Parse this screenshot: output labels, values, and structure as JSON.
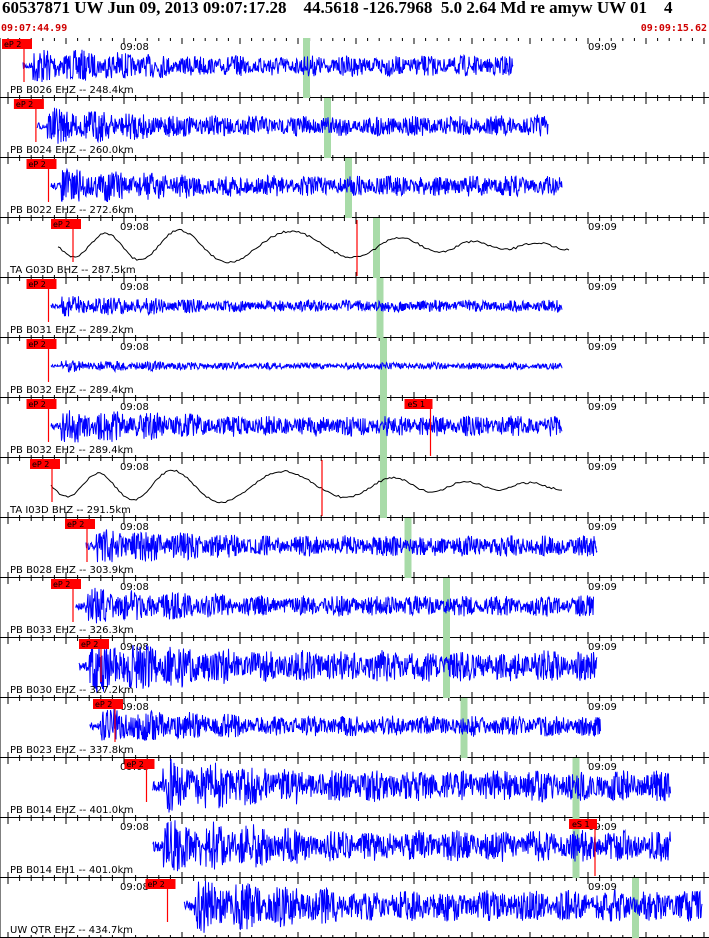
{
  "event": {
    "header_text": "60537871 UW Jun 09, 2013 09:07:17.28    44.5618 -126.7968  5.0 2.64 Md re amyw UW 01    4",
    "start_time": "09:07:44.99",
    "end_time": "09:09:15.62"
  },
  "colors": {
    "waveform": "#0000ff",
    "broadband": "#000000",
    "pick": "#ff0000",
    "highlight": "#a8dba8",
    "grid": "#000000"
  },
  "traces": [
    {
      "label": "PB B026 EHZ -- 248.4km",
      "kind": "short-period",
      "amp": "medium",
      "tick_left": "09:08",
      "tick_right": "09:09",
      "pick": {
        "label": "eP 2",
        "at": 0.0
      },
      "s_pick": null,
      "onset": 0.03,
      "duration": 0.7,
      "win": [
        0.43,
        0.44
      ]
    },
    {
      "label": "PB B024 EHZ -- 260.0km",
      "kind": "short-period",
      "amp": "medium",
      "tick_left": "",
      "tick_right": "",
      "pick": {
        "label": "eP 2",
        "at": 0.017
      },
      "s_pick": null,
      "onset": 0.05,
      "duration": 0.73,
      "win": [
        0.46,
        0.47
      ]
    },
    {
      "label": "PB B022 EHZ -- 272.6km",
      "kind": "short-period",
      "amp": "medium",
      "tick_left": "",
      "tick_right": "",
      "pick": {
        "label": "eP 2",
        "at": 0.035
      },
      "s_pick": null,
      "onset": 0.07,
      "duration": 0.73,
      "win": [
        0.49,
        0.5
      ]
    },
    {
      "label": "TA G03D BHZ -- 287.5km",
      "kind": "broadband",
      "amp": "large",
      "tick_left": "09:08",
      "tick_right": "09:09",
      "pick": {
        "label": "eP 2",
        "at": 0.07
      },
      "s_pick": {
        "label": "",
        "at": 0.47
      },
      "onset": 0.08,
      "duration": 0.73,
      "win": [
        0.53,
        0.54
      ]
    },
    {
      "label": "PB B031 EHZ -- 289.2km",
      "kind": "short-period",
      "amp": "small",
      "tick_left": "09:08",
      "tick_right": "09:09",
      "pick": {
        "label": "eP 2",
        "at": 0.035
      },
      "s_pick": null,
      "onset": 0.07,
      "duration": 0.73,
      "win": [
        0.535,
        0.545
      ]
    },
    {
      "label": "PB B032 EHZ -- 289.4km",
      "kind": "short-period",
      "amp": "tiny",
      "tick_left": "09:08",
      "tick_right": "09:09",
      "pick": {
        "label": "eP 2",
        "at": 0.035
      },
      "s_pick": null,
      "onset": 0.07,
      "duration": 0.73,
      "win": [
        0.54,
        0.55
      ]
    },
    {
      "label": "PB B032 EH2 -- 289.4km",
      "kind": "short-period",
      "amp": "medium",
      "tick_left": "09:08",
      "tick_right": "09:09",
      "pick": {
        "label": "eP 2",
        "at": 0.035
      },
      "s_pick": {
        "label": "eS 1",
        "at": 0.575
      },
      "onset": 0.07,
      "duration": 0.73,
      "win": [
        0.54,
        0.55
      ]
    },
    {
      "label": "TA I03D BHZ -- 291.5km",
      "kind": "broadband",
      "amp": "large",
      "tick_left": "09:08",
      "tick_right": "09:09",
      "pick": {
        "label": "eP 2",
        "at": 0.04
      },
      "s_pick": {
        "label": "",
        "at": 0.42
      },
      "onset": 0.07,
      "duration": 0.73,
      "win": [
        0.54,
        0.55
      ]
    },
    {
      "label": "PB B028 EHZ -- 303.9km",
      "kind": "short-period",
      "amp": "medium",
      "tick_left": "09:08",
      "tick_right": "09:09",
      "pick": {
        "label": "eP 2",
        "at": 0.09
      },
      "s_pick": null,
      "onset": 0.12,
      "duration": 0.73,
      "win": [
        0.575,
        0.585
      ]
    },
    {
      "label": "PB B033 EHZ -- 326.3km",
      "kind": "short-period",
      "amp": "medium",
      "tick_left": "09:08",
      "tick_right": "09:09",
      "pick": {
        "label": "eP 2",
        "at": 0.07
      },
      "s_pick": null,
      "onset": 0.105,
      "duration": 0.74,
      "win": [
        0.63,
        0.64
      ]
    },
    {
      "label": "PB B030 EHZ -- 327.2km",
      "kind": "short-period",
      "amp": "large",
      "tick_left": "09:08",
      "tick_right": "09:09",
      "pick": {
        "label": "eP 2",
        "at": 0.11
      },
      "s_pick": null,
      "onset": 0.11,
      "duration": 0.74,
      "win": [
        0.63,
        0.64
      ]
    },
    {
      "label": "PB B023 EHZ -- 337.8km",
      "kind": "short-period",
      "amp": "medium",
      "tick_left": "09:08",
      "tick_right": "09:09",
      "pick": {
        "label": "eP 2",
        "at": 0.13
      },
      "s_pick": null,
      "onset": 0.125,
      "duration": 0.73,
      "win": [
        0.655,
        0.665
      ]
    },
    {
      "label": "PB B014 EHZ -- 401.0km",
      "kind": "short-period",
      "amp": "large",
      "tick_left": "09:08",
      "tick_right": "09:09",
      "pick": {
        "label": "eP 2",
        "at": 0.175
      },
      "s_pick": null,
      "onset": 0.215,
      "duration": 0.74,
      "win": [
        0.815,
        0.825
      ]
    },
    {
      "label": "PB B014 EH1 -- 401.0km",
      "kind": "short-period",
      "amp": "large",
      "tick_left": "09:08",
      "tick_right": "09:09",
      "pick": {
        "label": "",
        "at": 0.0
      },
      "s_pick": {
        "label": "eS 1",
        "at": 0.81
      },
      "onset": 0.215,
      "duration": 0.74,
      "win": [
        0.815,
        0.825
      ]
    },
    {
      "label": "UW QTR EHZ -- 434.7km",
      "kind": "short-period",
      "amp": "large",
      "tick_left": "09:08",
      "tick_right": "09:09",
      "pick": {
        "label": "eP 2",
        "at": 0.205
      },
      "s_pick": null,
      "onset": 0.26,
      "duration": 0.74,
      "win": [
        0.9,
        0.91
      ]
    }
  ]
}
